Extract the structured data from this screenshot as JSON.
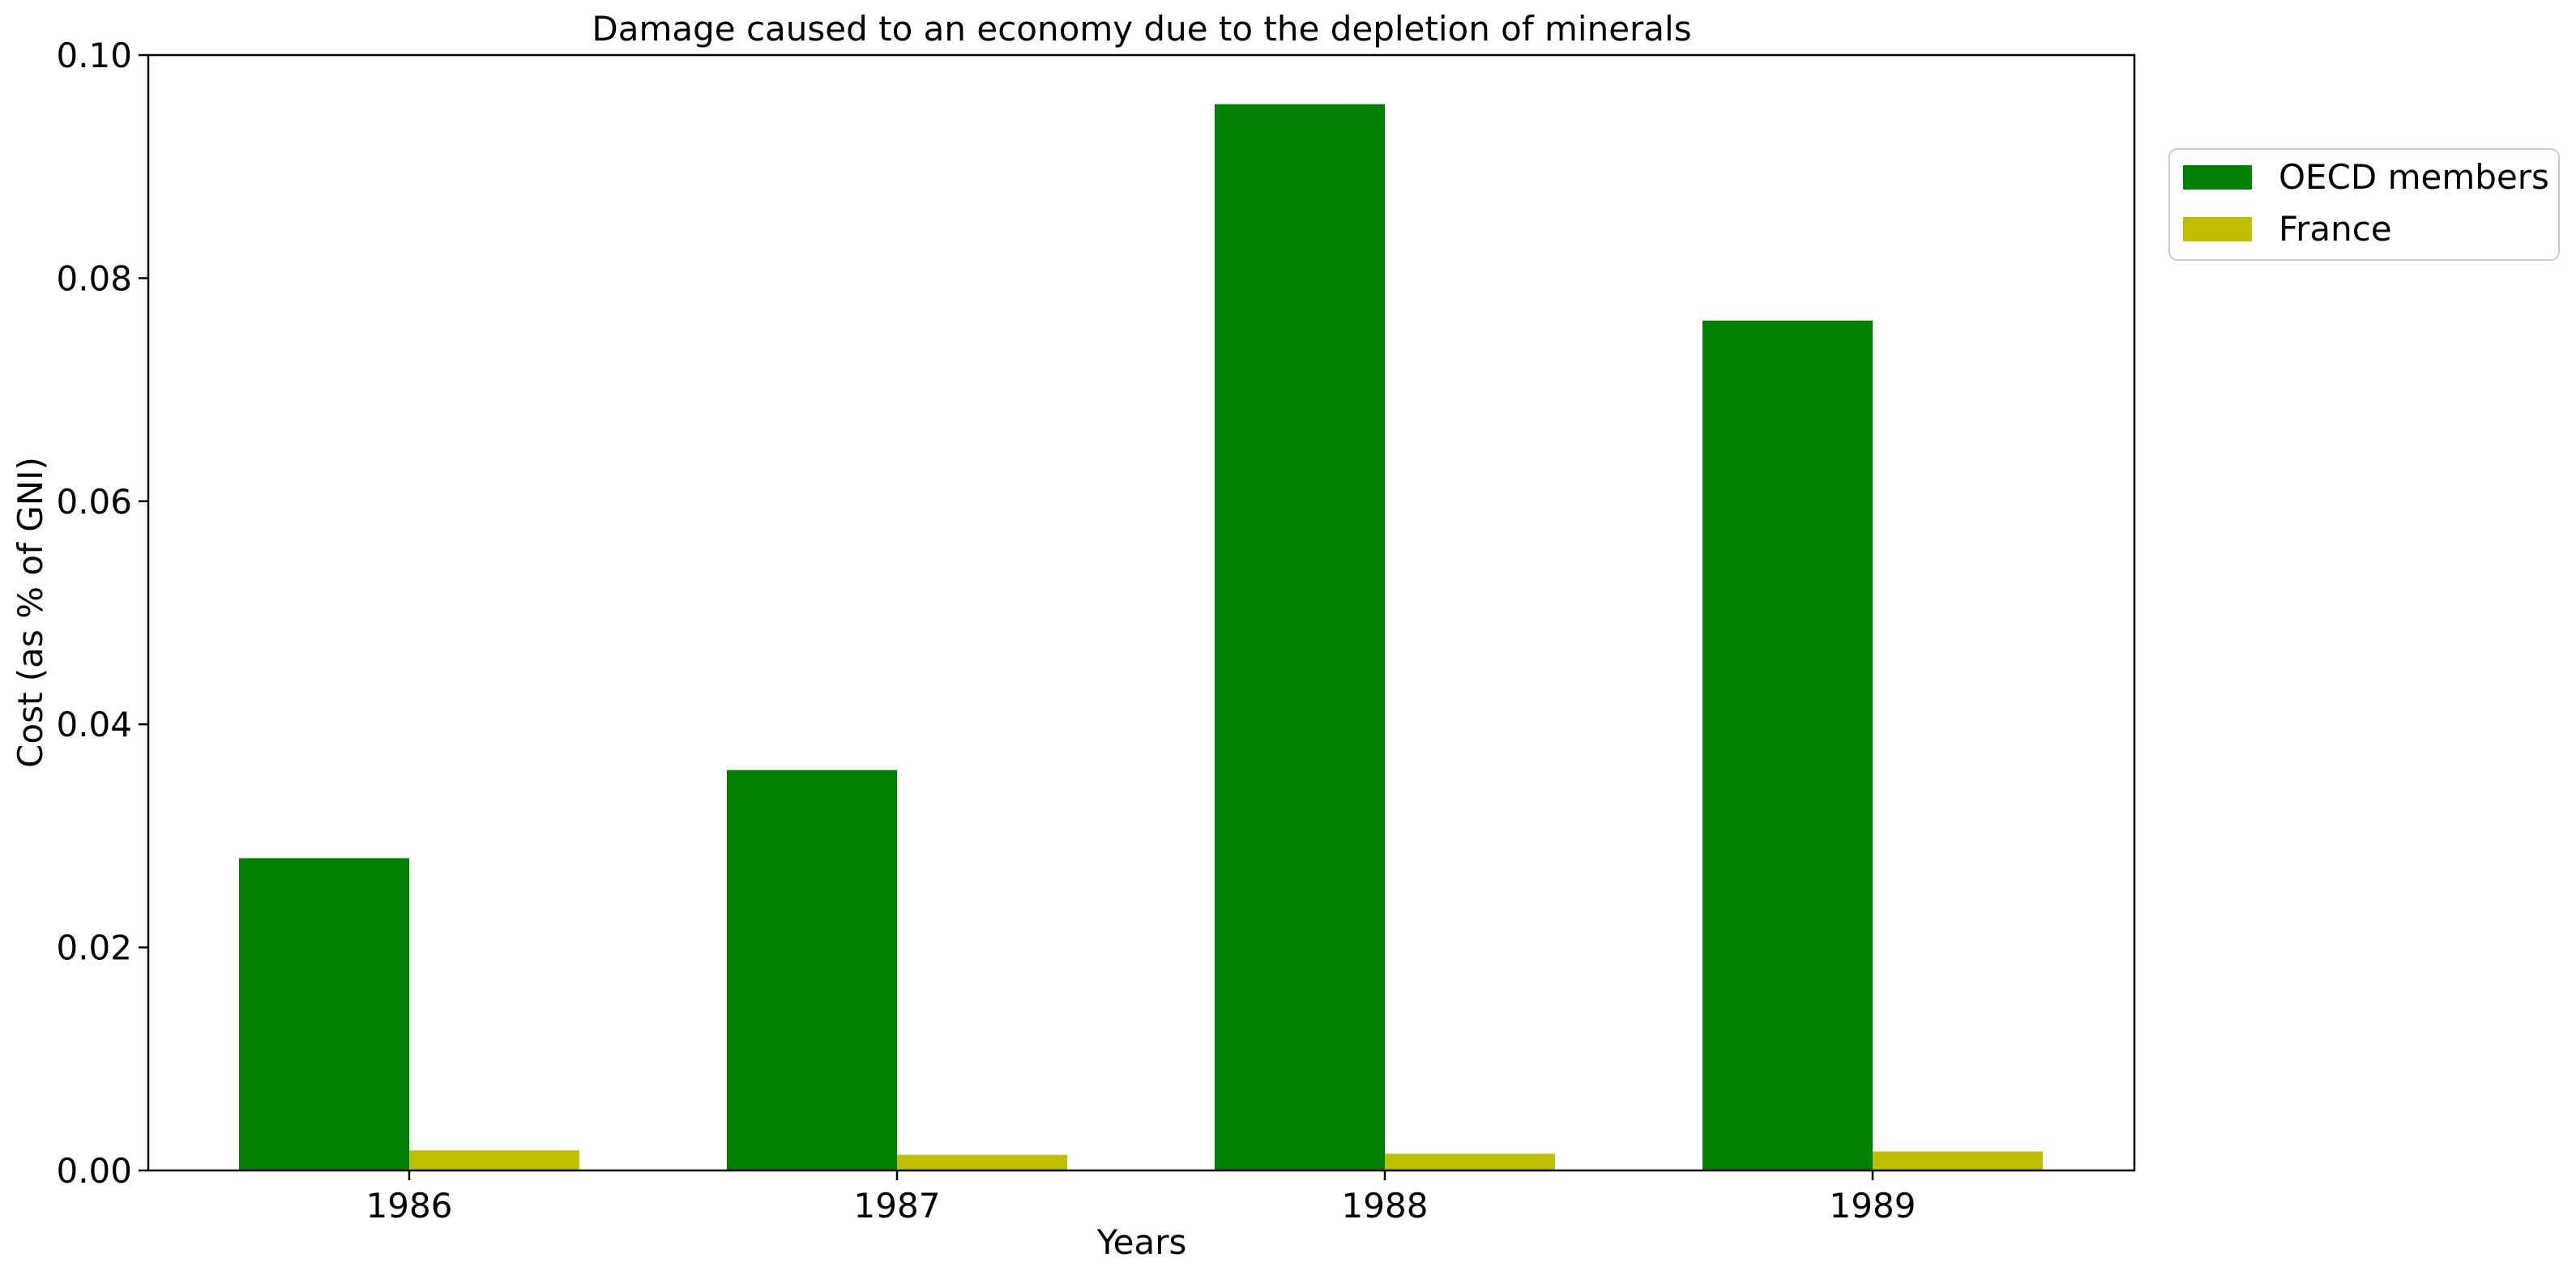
{
  "chart_data": {
    "type": "bar",
    "title": "Damage caused to an economy due to the depletion of minerals",
    "xlabel": "Years",
    "ylabel": "Cost (as % of GNI)",
    "categories": [
      "1986",
      "1987",
      "1988",
      "1989"
    ],
    "series": [
      {
        "name": "OECD members",
        "color": "#008000",
        "values": [
          0.028,
          0.0359,
          0.0956,
          0.0762
        ]
      },
      {
        "name": "France",
        "color": "#bfbf00",
        "values": [
          0.0018,
          0.0014,
          0.0015,
          0.0017
        ]
      }
    ],
    "ylim": [
      0,
      0.1
    ],
    "yticks": [
      "0.00",
      "0.02",
      "0.04",
      "0.06",
      "0.08",
      "0.10"
    ],
    "grid": false,
    "legend_position": "outside-top-right"
  }
}
